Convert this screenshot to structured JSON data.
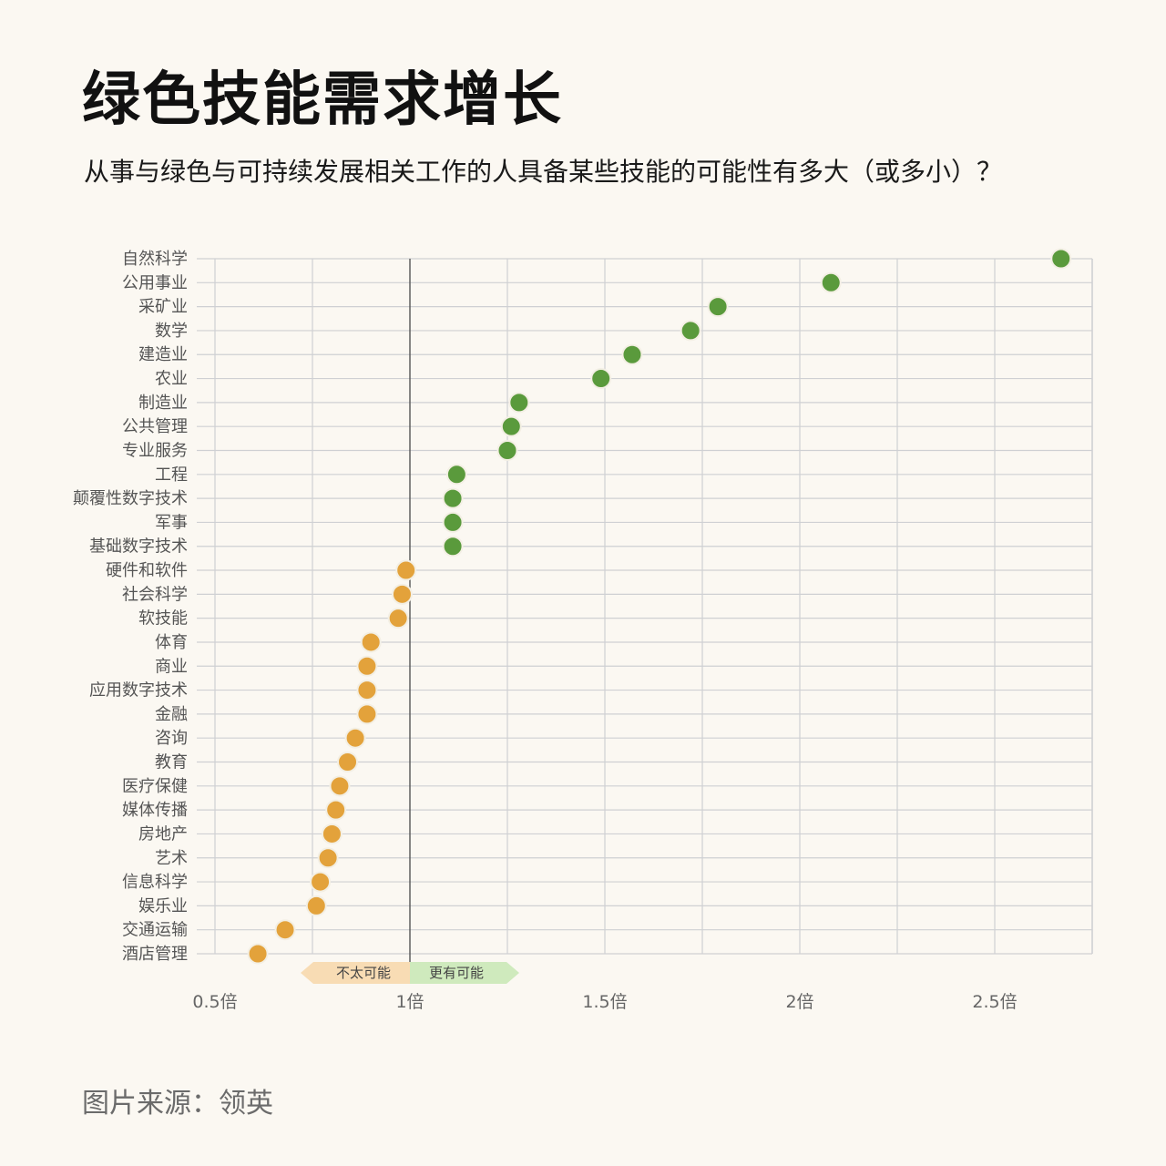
{
  "title": "绿色技能需求增长",
  "subtitle": "从事与绿色与可持续发展相关工作的人具备某些技能的可能性有多大（或多小）？",
  "source": "图片来源：领英",
  "colors": {
    "background": "#fbf8f2",
    "more_likely_point": "#5a9a3c",
    "less_likely_point": "#e3a23b",
    "point_stroke": "#f3efe4",
    "grid": "#cfd0d3",
    "reference_line": "#555555",
    "less_likely_band": "#f8dcb4",
    "more_likely_band": "#cfeabd"
  },
  "chart_data": {
    "type": "scatter",
    "orientation": "horizontal-dot-plot",
    "title": "绿色技能需求增长",
    "xlabel": "",
    "ylabel": "",
    "xlim": [
      0.5,
      2.75
    ],
    "x_ticks": [
      0.5,
      1,
      1.5,
      2,
      2.5
    ],
    "x_tick_labels": [
      "0.5倍",
      "1倍",
      "1.5倍",
      "2倍",
      "2.5倍"
    ],
    "reference_x": 1,
    "grid": true,
    "band_labels": {
      "less": "不太可能",
      "more": "更有可能"
    },
    "categories": [
      "自然科学",
      "公用事业",
      "采矿业",
      "数学",
      "建造业",
      "农业",
      "制造业",
      "公共管理",
      "专业服务",
      "工程",
      "颠覆性数字技术",
      "军事",
      "基础数字技术",
      "硬件和软件",
      "社会科学",
      "软技能",
      "体育",
      "商业",
      "应用数字技术",
      "金融",
      "咨询",
      "教育",
      "医疗保健",
      "媒体传播",
      "房地产",
      "艺术",
      "信息科学",
      "娱乐业",
      "交通运输",
      "酒店管理"
    ],
    "values": [
      2.67,
      2.08,
      1.79,
      1.72,
      1.57,
      1.49,
      1.28,
      1.26,
      1.25,
      1.12,
      1.11,
      1.11,
      1.11,
      0.99,
      0.98,
      0.97,
      0.9,
      0.89,
      0.89,
      0.89,
      0.86,
      0.84,
      0.82,
      0.81,
      0.8,
      0.79,
      0.77,
      0.76,
      0.68,
      0.61
    ]
  }
}
